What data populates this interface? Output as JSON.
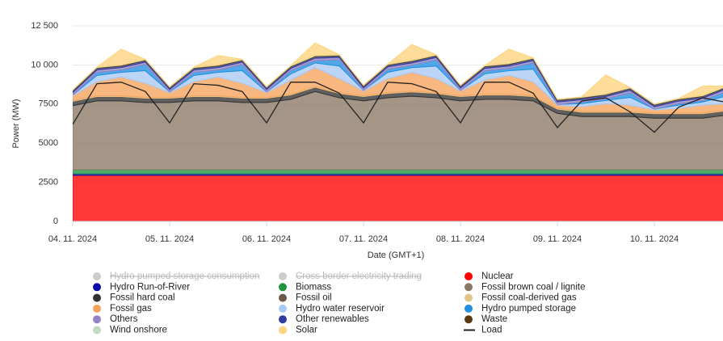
{
  "chart_data": {
    "type": "stacked-area",
    "x_label": "Date (GMT+1)",
    "y_label": "Power (MW)",
    "categories": [
      "04. 11. 2024",
      null,
      null,
      null,
      "05. 11. 2024",
      null,
      null,
      null,
      "06. 11. 2024",
      null,
      null,
      null,
      "07. 11. 2024",
      null,
      null,
      null,
      "08. 11. 2024",
      null,
      null,
      null,
      "09. 11. 2024",
      null,
      null,
      null,
      "10. 11. 2024",
      null,
      null,
      null
    ],
    "ylim": [
      0,
      12500
    ],
    "yticks": [
      0,
      2500,
      5000,
      7500,
      {
        "value": 10000,
        "label": "10 000"
      },
      {
        "value": 12500,
        "label": "12 500"
      }
    ],
    "grid": true,
    "legend_hidden": [
      {
        "name": "Hydro pumped storage consumption",
        "color": "#cccccc"
      },
      {
        "name": "Cross border electricity trading",
        "color": "#cccccc"
      }
    ],
    "series": [
      {
        "name": "Nuclear",
        "color": "#ff0000",
        "values": [
          2950,
          2950,
          2950,
          2950,
          2950,
          2950,
          2950,
          2950,
          2950,
          2950,
          2950,
          2950,
          2950,
          2950,
          2950,
          2950,
          2950,
          2950,
          2950,
          2950,
          2950,
          2950,
          2950,
          2950,
          2950,
          2950,
          2950,
          2950
        ]
      },
      {
        "name": "Hydro Run-of-River",
        "color": "#0a0aa8",
        "values": [
          100,
          100,
          100,
          100,
          100,
          100,
          100,
          100,
          100,
          100,
          100,
          100,
          100,
          100,
          100,
          100,
          100,
          100,
          100,
          100,
          100,
          100,
          100,
          100,
          100,
          100,
          100,
          100
        ]
      },
      {
        "name": "Biomass",
        "color": "#1a9641",
        "values": [
          250,
          250,
          250,
          250,
          250,
          250,
          250,
          250,
          250,
          250,
          250,
          250,
          250,
          250,
          250,
          250,
          250,
          250,
          250,
          250,
          250,
          250,
          250,
          250,
          250,
          250,
          250,
          250
        ]
      },
      {
        "name": "Fossil brown coal / lignite",
        "color": "#8b7765",
        "values": [
          4100,
          4400,
          4400,
          4300,
          4300,
          4400,
          4400,
          4300,
          4300,
          4500,
          5000,
          4600,
          4400,
          4600,
          4700,
          4600,
          4400,
          4500,
          4500,
          4400,
          3600,
          3400,
          3400,
          3400,
          3300,
          3300,
          3300,
          3500
        ]
      },
      {
        "name": "Fossil hard coal",
        "color": "#333333",
        "values": [
          250,
          250,
          250,
          250,
          250,
          250,
          250,
          250,
          250,
          250,
          250,
          250,
          250,
          250,
          250,
          250,
          250,
          250,
          250,
          250,
          250,
          250,
          250,
          250,
          250,
          250,
          250,
          250
        ]
      },
      {
        "name": "Fossil oil",
        "color": "#6e5a4b",
        "values": [
          30,
          30,
          30,
          30,
          30,
          30,
          30,
          30,
          30,
          30,
          30,
          30,
          30,
          30,
          30,
          30,
          30,
          30,
          30,
          30,
          30,
          30,
          30,
          30,
          30,
          30,
          30,
          30
        ]
      },
      {
        "name": "Fossil coal-derived gas",
        "color": "#e2c48a",
        "values": [
          50,
          50,
          50,
          50,
          50,
          50,
          50,
          50,
          50,
          50,
          50,
          50,
          50,
          50,
          50,
          50,
          50,
          50,
          50,
          50,
          50,
          50,
          50,
          50,
          50,
          50,
          50,
          50
        ]
      },
      {
        "name": "Fossil gas",
        "color": "#f7a35c",
        "values": [
          300,
          900,
          1200,
          900,
          300,
          900,
          1200,
          900,
          300,
          900,
          1200,
          900,
          300,
          900,
          1200,
          900,
          300,
          900,
          1200,
          900,
          200,
          300,
          500,
          400,
          200,
          300,
          500,
          400
        ]
      },
      {
        "name": "Hydro water reservoir",
        "color": "#a9c9f5",
        "values": [
          50,
          400,
          300,
          800,
          50,
          400,
          300,
          800,
          50,
          400,
          300,
          800,
          50,
          400,
          300,
          800,
          50,
          400,
          300,
          800,
          50,
          200,
          200,
          500,
          50,
          200,
          200,
          500
        ]
      },
      {
        "name": "Hydro pumped storage",
        "color": "#1f8fe0",
        "values": [
          0,
          200,
          150,
          400,
          0,
          200,
          150,
          400,
          0,
          200,
          150,
          400,
          0,
          200,
          150,
          400,
          0,
          200,
          150,
          400,
          0,
          100,
          100,
          300,
          0,
          100,
          100,
          300
        ]
      },
      {
        "name": "Others",
        "color": "#9484c4",
        "values": [
          150,
          150,
          150,
          150,
          150,
          150,
          150,
          150,
          150,
          150,
          150,
          150,
          150,
          150,
          150,
          150,
          150,
          150,
          150,
          150,
          150,
          150,
          150,
          150,
          150,
          150,
          150,
          150
        ]
      },
      {
        "name": "Other renewables",
        "color": "#2f3d9e",
        "values": [
          100,
          100,
          100,
          100,
          100,
          100,
          100,
          100,
          100,
          100,
          100,
          100,
          100,
          100,
          100,
          100,
          100,
          100,
          100,
          100,
          100,
          100,
          100,
          100,
          100,
          100,
          100,
          100
        ]
      },
      {
        "name": "Waste",
        "color": "#5a3a12",
        "values": [
          50,
          50,
          50,
          50,
          50,
          50,
          50,
          50,
          50,
          50,
          50,
          50,
          50,
          50,
          50,
          50,
          50,
          50,
          50,
          50,
          50,
          50,
          50,
          50,
          50,
          50,
          50,
          50
        ]
      },
      {
        "name": "Wind onshore",
        "color": "#c2d9c2",
        "values": [
          30,
          30,
          30,
          30,
          30,
          30,
          30,
          30,
          30,
          30,
          30,
          30,
          30,
          30,
          30,
          30,
          30,
          30,
          30,
          30,
          30,
          30,
          30,
          30,
          30,
          30,
          30,
          30
        ]
      },
      {
        "name": "Solar",
        "color": "#fdd47c",
        "values": [
          0,
          0,
          1000,
          0,
          0,
          0,
          600,
          0,
          0,
          0,
          800,
          0,
          0,
          0,
          1000,
          0,
          0,
          0,
          900,
          0,
          0,
          0,
          1200,
          0,
          0,
          0,
          600,
          0
        ]
      }
    ],
    "line_series": {
      "name": "Load",
      "color": "#222222",
      "values": [
        6200,
        8800,
        8900,
        8300,
        6300,
        8800,
        8700,
        8300,
        6300,
        8900,
        8900,
        8200,
        6300,
        8900,
        8800,
        8300,
        6300,
        8900,
        8900,
        8200,
        6000,
        7700,
        7900,
        7000,
        5700,
        7300,
        7900,
        7600
      ]
    }
  }
}
